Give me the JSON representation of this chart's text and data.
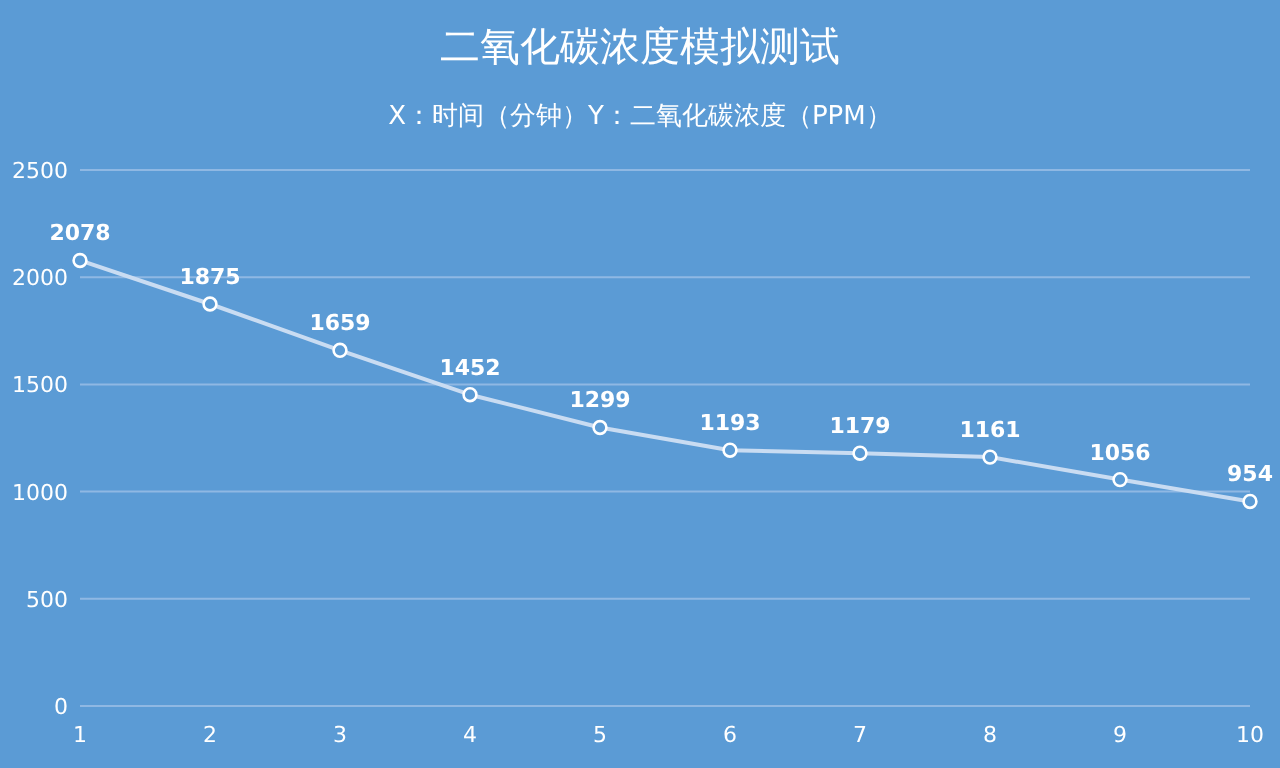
{
  "chart_data": {
    "type": "line",
    "title": "二氧化碳浓度模拟测试",
    "subtitle": "X：时间（分钟）Y：二氧化碳浓度（PPM）",
    "x": [
      1,
      2,
      3,
      4,
      5,
      6,
      7,
      8,
      9,
      10
    ],
    "series": [
      {
        "color": "#c9dcf2",
        "values": [
          2078,
          1875,
          1659,
          1452,
          1299,
          1193,
          1179,
          1161,
          1056,
          954
        ]
      }
    ],
    "xlim": [
      1,
      10
    ],
    "xticks": [
      1,
      2,
      3,
      4,
      5,
      6,
      7,
      8,
      9,
      10
    ],
    "ylim": [
      0,
      2500
    ],
    "yticks": [
      0,
      500,
      1000,
      1500,
      2000,
      2500
    ],
    "grid": "y",
    "data_labels": true,
    "marker": "circle",
    "line_style": "solid"
  }
}
